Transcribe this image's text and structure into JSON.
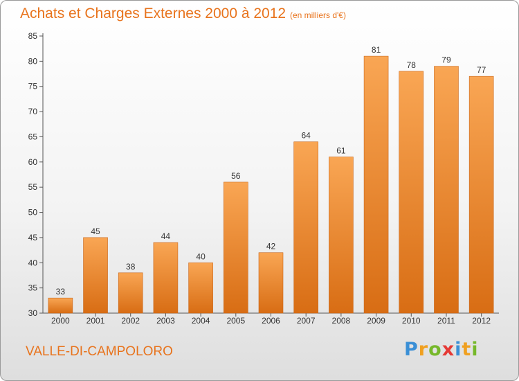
{
  "title": "Achats et Charges Externes 2000 à 2012",
  "subtitle": "(en milliers d'€)",
  "commune": "VALLE-DI-CAMPOLORO",
  "brand": {
    "name": "Proxiti",
    "letters": [
      {
        "ch": "P",
        "color": "#3a8fd6"
      },
      {
        "ch": "r",
        "color": "#f0a020"
      },
      {
        "ch": "o",
        "color": "#76b82a"
      },
      {
        "ch": "x",
        "color": "#e53935"
      },
      {
        "ch": "i",
        "color": "#3a8fd6"
      },
      {
        "ch": "t",
        "color": "#f0a020"
      },
      {
        "ch": "i",
        "color": "#76b82a"
      }
    ]
  },
  "colors": {
    "bar_light": "#f9a654",
    "bar_dark": "#d86d14",
    "accent": "#e8731c"
  },
  "chart_data": {
    "type": "bar",
    "categories": [
      "2000",
      "2001",
      "2002",
      "2003",
      "2004",
      "2005",
      "2006",
      "2007",
      "2008",
      "2009",
      "2010",
      "2011",
      "2012"
    ],
    "values": [
      33,
      45,
      38,
      44,
      40,
      56,
      42,
      64,
      61,
      81,
      78,
      79,
      77
    ],
    "title": "Achats et Charges Externes 2000 à 2012",
    "xlabel": "",
    "ylabel": "",
    "ylim": [
      30,
      85
    ],
    "yticks": [
      30,
      35,
      40,
      45,
      50,
      55,
      60,
      65,
      70,
      75,
      80,
      85
    ],
    "grid": false,
    "legend": "none"
  }
}
